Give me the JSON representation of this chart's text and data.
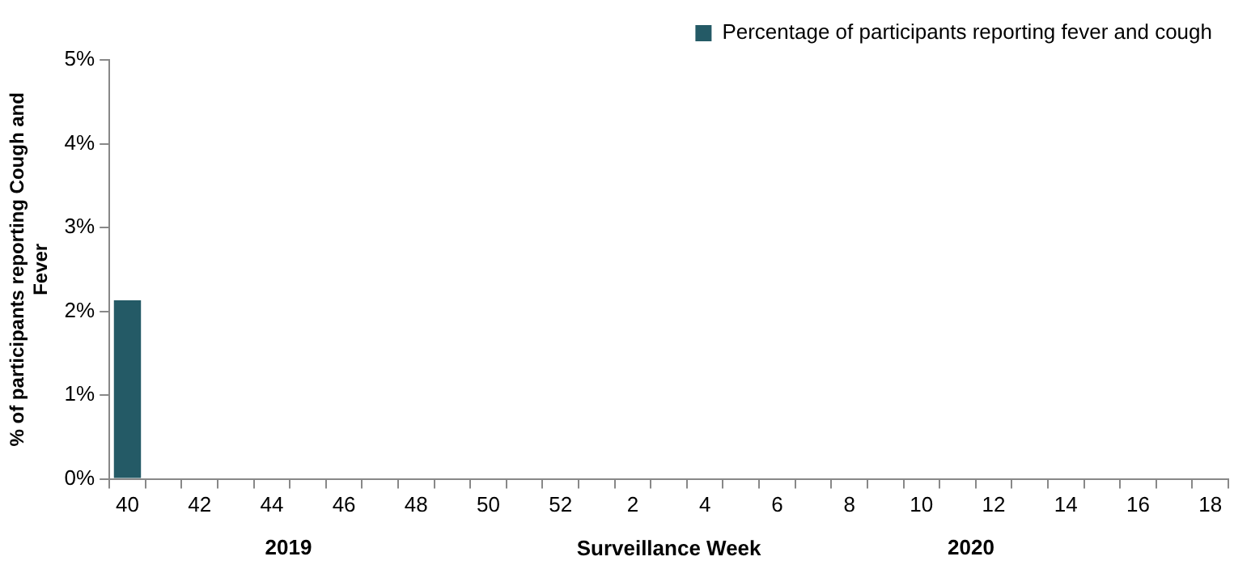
{
  "chart_data": {
    "type": "bar",
    "categories": [
      "40",
      null,
      "42",
      null,
      "44",
      null,
      "46",
      null,
      "48",
      null,
      "50",
      null,
      "52",
      null,
      "2",
      null,
      "4",
      null,
      "6",
      null,
      "8",
      null,
      "10",
      null,
      "12",
      null,
      "14",
      null,
      "16",
      null,
      "18"
    ],
    "series": [
      {
        "name": "Percentage of participants reporting fever and cough",
        "color": "#245a66",
        "values": [
          2.13,
          null,
          null,
          null,
          null,
          null,
          null,
          null,
          null,
          null,
          null,
          null,
          null,
          null,
          null,
          null,
          null,
          null,
          null,
          null,
          null,
          null,
          null,
          null,
          null,
          null,
          null,
          null,
          null,
          null,
          null
        ]
      }
    ],
    "xlabel": "Surveillance Week",
    "ylabel": "% of participants reporting Cough and Fever",
    "annotations": [
      "2019",
      "2020"
    ],
    "ylim": [
      0,
      5
    ],
    "yticks": [
      {
        "value": 0,
        "label": "0%"
      },
      {
        "value": 1,
        "label": "1%"
      },
      {
        "value": 2,
        "label": "2%"
      },
      {
        "value": 3,
        "label": "3%"
      },
      {
        "value": 4,
        "label": "4%"
      },
      {
        "value": 5,
        "label": "5%"
      }
    ],
    "grid": false,
    "legend": "top right"
  }
}
